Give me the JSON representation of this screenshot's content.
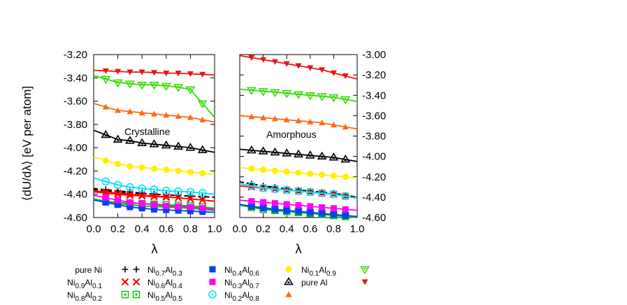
{
  "chart_data": [
    {
      "type": "line",
      "annotation": "Crystalline",
      "ylabel": "⟨dU/dλ⟩ [eV per atom]",
      "xlabel": "λ",
      "xlim": [
        0.0,
        1.0
      ],
      "ylim": [
        -4.6,
        -3.2
      ],
      "xticks": [
        "0.0",
        "0.2",
        "0.4",
        "0.6",
        "0.8",
        "1.0"
      ],
      "yticks": [
        "-3.20",
        "-3.40",
        "-3.60",
        "-3.80",
        "-4.00",
        "-4.20",
        "-4.40",
        "-4.60"
      ],
      "yaxis_side": "left",
      "x": [
        0.1,
        0.2,
        0.3,
        0.4,
        0.5,
        0.6,
        0.7,
        0.8,
        0.9
      ],
      "series": [
        {
          "key": "pure_ni",
          "values": [
            -4.37,
            -4.38,
            -4.39,
            -4.395,
            -4.4,
            -4.405,
            -4.41,
            -4.415,
            -4.42
          ]
        },
        {
          "key": "ni09",
          "values": [
            -4.39,
            -4.4,
            -4.41,
            -4.415,
            -4.42,
            -4.425,
            -4.43,
            -4.44,
            -4.45
          ]
        },
        {
          "key": "ni08",
          "values": [
            -4.46,
            -4.47,
            -4.475,
            -4.48,
            -4.485,
            -4.49,
            -4.495,
            -4.5,
            -4.51
          ]
        },
        {
          "key": "ni07",
          "values": [
            -4.36,
            -4.37,
            -4.38,
            -4.39,
            -4.4,
            -4.405,
            -4.41,
            -4.415,
            -4.42
          ]
        },
        {
          "key": "ni06",
          "values": [
            -4.38,
            -4.39,
            -4.4,
            -4.41,
            -4.415,
            -4.42,
            -4.43,
            -4.44,
            -4.45
          ]
        },
        {
          "key": "ni05",
          "values": [
            -4.46,
            -4.48,
            -4.49,
            -4.5,
            -4.505,
            -4.51,
            -4.515,
            -4.52,
            -4.53
          ]
        },
        {
          "key": "ni04",
          "values": [
            -4.47,
            -4.49,
            -4.51,
            -4.52,
            -4.53,
            -4.535,
            -4.54,
            -4.545,
            -4.55
          ]
        },
        {
          "key": "ni03",
          "values": [
            -4.43,
            -4.45,
            -4.47,
            -4.48,
            -4.49,
            -4.5,
            -4.505,
            -4.51,
            -4.52
          ]
        },
        {
          "key": "ni02",
          "values": [
            -4.29,
            -4.32,
            -4.34,
            -4.35,
            -4.36,
            -4.37,
            -4.375,
            -4.38,
            -4.39
          ]
        },
        {
          "key": "ni01",
          "values": [
            -4.11,
            -4.14,
            -4.16,
            -4.17,
            -4.18,
            -4.19,
            -4.2,
            -4.21,
            -4.22
          ]
        },
        {
          "key": "pure_al",
          "values": [
            -3.89,
            -3.93,
            -3.94,
            -3.96,
            -3.97,
            -3.98,
            -3.99,
            -4.0,
            -4.02
          ]
        },
        {
          "key": "ni00_up",
          "values": [
            -3.65,
            -3.68,
            -3.69,
            -3.7,
            -3.71,
            -3.72,
            -3.73,
            -3.74,
            -3.76
          ]
        },
        {
          "key": "green_tri",
          "values": [
            -3.41,
            -3.44,
            -3.45,
            -3.46,
            -3.46,
            -3.47,
            -3.48,
            -3.5,
            -3.62
          ]
        },
        {
          "key": "red_tri",
          "values": [
            -3.34,
            -3.345,
            -3.35,
            -3.35,
            -3.355,
            -3.36,
            -3.36,
            -3.365,
            -3.37
          ]
        }
      ]
    },
    {
      "type": "line",
      "annotation": "Amorphous",
      "xlabel": "λ",
      "xlim": [
        0.0,
        1.0
      ],
      "ylim": [
        -4.6,
        -3.0
      ],
      "xticks": [
        "0.0",
        "0.2",
        "0.4",
        "0.6",
        "0.8",
        "1.0"
      ],
      "yticks": [
        "-3.00",
        "-3.20",
        "-3.40",
        "-3.60",
        "-3.80",
        "-4.00",
        "-4.20",
        "-4.40",
        "-4.60"
      ],
      "yaxis_side": "right",
      "x": [
        0.1,
        0.2,
        0.3,
        0.4,
        0.5,
        0.6,
        0.7,
        0.8,
        0.9
      ],
      "series": [
        {
          "key": "pure_ni",
          "values": [
            -4.27,
            -4.29,
            -4.31,
            -4.32,
            -4.33,
            -4.34,
            -4.35,
            -4.36,
            -4.38
          ]
        },
        {
          "key": "ni09",
          "values": [
            -4.29,
            -4.31,
            -4.32,
            -4.33,
            -4.34,
            -4.35,
            -4.36,
            -4.37,
            -4.39
          ]
        },
        {
          "key": "ni08",
          "values": [
            -4.5,
            -4.52,
            -4.53,
            -4.54,
            -4.55,
            -4.56,
            -4.57,
            -4.58,
            -4.59
          ]
        },
        {
          "key": "ni07",
          "values": [
            -4.27,
            -4.29,
            -4.3,
            -4.32,
            -4.33,
            -4.34,
            -4.35,
            -4.36,
            -4.38
          ]
        },
        {
          "key": "ni06",
          "values": [
            -4.3,
            -4.31,
            -4.32,
            -4.33,
            -4.34,
            -4.35,
            -4.36,
            -4.37,
            -4.39
          ]
        },
        {
          "key": "ni05",
          "values": [
            -4.49,
            -4.5,
            -4.52,
            -4.53,
            -4.54,
            -4.55,
            -4.56,
            -4.57,
            -4.58
          ]
        },
        {
          "key": "ni04",
          "values": [
            -4.49,
            -4.51,
            -4.52,
            -4.53,
            -4.54,
            -4.55,
            -4.56,
            -4.57,
            -4.58
          ]
        },
        {
          "key": "ni03",
          "values": [
            -4.44,
            -4.45,
            -4.46,
            -4.47,
            -4.48,
            -4.49,
            -4.5,
            -4.51,
            -4.52
          ]
        },
        {
          "key": "ni02",
          "values": [
            -4.29,
            -4.31,
            -4.32,
            -4.33,
            -4.34,
            -4.35,
            -4.36,
            -4.37,
            -4.39
          ]
        },
        {
          "key": "ni01",
          "values": [
            -4.12,
            -4.13,
            -4.14,
            -4.15,
            -4.16,
            -4.17,
            -4.18,
            -4.19,
            -4.2
          ]
        },
        {
          "key": "pure_al",
          "values": [
            -3.94,
            -3.95,
            -3.96,
            -3.97,
            -3.98,
            -3.99,
            -4.0,
            -4.01,
            -4.03
          ]
        },
        {
          "key": "ni00_up",
          "values": [
            -3.61,
            -3.62,
            -3.63,
            -3.64,
            -3.65,
            -3.66,
            -3.67,
            -3.69,
            -3.71
          ]
        },
        {
          "key": "green_tri",
          "values": [
            -3.35,
            -3.36,
            -3.37,
            -3.38,
            -3.39,
            -3.4,
            -3.41,
            -3.42,
            -3.44
          ]
        },
        {
          "key": "red_tri",
          "values": [
            -3.03,
            -3.05,
            -3.07,
            -3.09,
            -3.11,
            -3.13,
            -3.15,
            -3.18,
            -3.21
          ]
        }
      ]
    }
  ],
  "styles": {
    "pure_ni": {
      "color": "#000000",
      "marker": "plus",
      "dashed": true
    },
    "ni09": {
      "color": "#ff0000",
      "marker": "cross",
      "dashed": false
    },
    "ni08": {
      "color": "#00c000",
      "marker": "square-open",
      "dashed": false
    },
    "ni07": {
      "color": "#000000",
      "marker": "plus",
      "dashed": true
    },
    "ni06": {
      "color": "#ff0000",
      "marker": "cross",
      "dashed": false
    },
    "ni05": {
      "color": "#00c000",
      "marker": "square-open",
      "dashed": false
    },
    "ni04": {
      "color": "#0040ff",
      "marker": "square",
      "dashed": false
    },
    "ni03": {
      "color": "#ff00ff",
      "marker": "square",
      "dashed": false
    },
    "ni02": {
      "color": "#00e0ff",
      "marker": "circle-open",
      "dashed": false
    },
    "ni01": {
      "color": "#ffee00",
      "marker": "circle",
      "dashed": false
    },
    "pure_al": {
      "color": "#000000",
      "marker": "triangle-open",
      "dashed": false
    },
    "ni00_up": {
      "color": "#ff6a10",
      "marker": "triangle",
      "dashed": false
    },
    "green_tri": {
      "color": "#33dd00",
      "marker": "triangle-down-open",
      "dashed": false
    },
    "red_tri": {
      "color": "#ee1111",
      "marker": "triangle-down",
      "dashed": false
    }
  },
  "legend": {
    "col1": [
      "pure Ni",
      "Ni0.9Al0.1",
      "Ni0.8Al0.2"
    ],
    "col2": [
      "Ni0.7Al0.3",
      "Ni0.6Al0.4",
      "Ni0.5Al0.5"
    ],
    "col3": [
      "Ni0.4Al0.6",
      "Ni0.3Al0.7",
      "Ni0.2Al0.8"
    ],
    "col4": [
      "Ni0.1Al0.9",
      "pure Al",
      ""
    ],
    "entries": [
      {
        "key": "pure_ni",
        "base": "pure Ni",
        "sub1": "",
        "mid": "",
        "sub2": ""
      },
      {
        "key": "ni09",
        "base": "Ni",
        "sub1": "0.9",
        "mid": "Al",
        "sub2": "0.1"
      },
      {
        "key": "ni08",
        "base": "Ni",
        "sub1": "0.8",
        "mid": "Al",
        "sub2": "0.2"
      },
      {
        "key": "ni07",
        "base": "Ni",
        "sub1": "0.7",
        "mid": "Al",
        "sub2": "0.3"
      },
      {
        "key": "ni06",
        "base": "Ni",
        "sub1": "0.6",
        "mid": "Al",
        "sub2": "0.4"
      },
      {
        "key": "ni05",
        "base": "Ni",
        "sub1": "0.5",
        "mid": "Al",
        "sub2": "0.5"
      },
      {
        "key": "ni04",
        "base": "Ni",
        "sub1": "0.4",
        "mid": "Al",
        "sub2": "0.6"
      },
      {
        "key": "ni03",
        "base": "Ni",
        "sub1": "0.3",
        "mid": "Al",
        "sub2": "0.7"
      },
      {
        "key": "ni02",
        "base": "Ni",
        "sub1": "0.2",
        "mid": "Al",
        "sub2": "0.8"
      },
      {
        "key": "ni01",
        "base": "Ni",
        "sub1": "0.1",
        "mid": "Al",
        "sub2": "0.9"
      },
      {
        "key": "pure_al",
        "base": "pure Al",
        "sub1": "",
        "mid": "",
        "sub2": ""
      },
      {
        "key": "ni00_up",
        "base": "",
        "sub1": "",
        "mid": "",
        "sub2": ""
      },
      {
        "key": "green_tri",
        "base": "",
        "sub1": "",
        "mid": "",
        "sub2": ""
      },
      {
        "key": "red_tri",
        "base": "",
        "sub1": "",
        "mid": "",
        "sub2": ""
      }
    ]
  }
}
